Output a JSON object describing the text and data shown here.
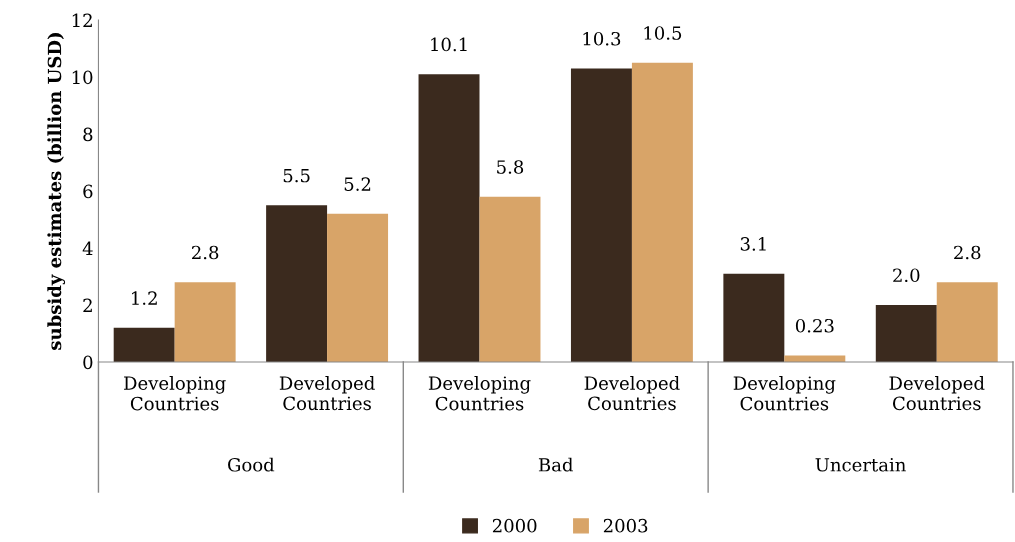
{
  "chart_data": {
    "type": "bar",
    "ylabel": "subsidy estimates (billion USD)",
    "categories": [
      "Developing Countries",
      "Developed Countries",
      "Developing Countries",
      "Developed Countries",
      "Developing Countries",
      "Developed Countries"
    ],
    "series": [
      {
        "name": "2000",
        "color": "#3b2a1e",
        "values": [
          1.2,
          5.5,
          10.1,
          10.3,
          3.1,
          2.0
        ],
        "value_labels": [
          "1.2",
          "5.5",
          "10.1",
          "10.3",
          "3.1",
          "2.0"
        ]
      },
      {
        "name": "2003",
        "color": "#d8a468",
        "values": [
          2.8,
          5.2,
          5.8,
          10.5,
          0.23,
          2.8
        ],
        "value_labels": [
          "2.8",
          "5.2",
          "5.8",
          "10.5",
          "0.23",
          "2.8"
        ]
      }
    ],
    "annotations": [
      "Good",
      "Bad",
      "Uncertain"
    ],
    "ylim": [
      0,
      12
    ],
    "yticks": [
      0,
      2,
      4,
      6,
      8,
      10,
      12
    ],
    "grid": false,
    "legend": "bottom"
  }
}
